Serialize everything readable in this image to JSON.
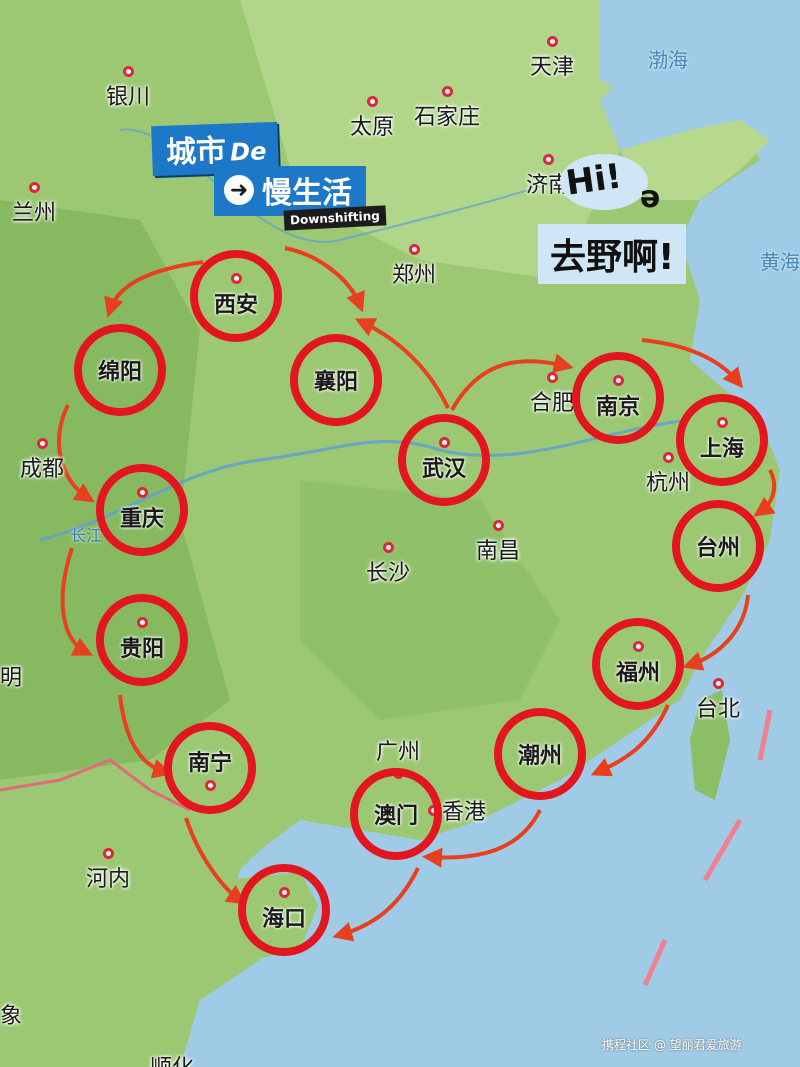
{
  "banner": {
    "line1": "城市",
    "line1_suffix": "De",
    "line2": "慢生活",
    "arrow": "➜",
    "tag": "Downshifting"
  },
  "callout": {
    "hi": "Hi!",
    "scribble": "ə",
    "go": "去野啊!"
  },
  "seas": {
    "bohai": "渤海",
    "huanghai": "黄海"
  },
  "river": "长江",
  "cities": {
    "yinchuan": "银川",
    "tianjin": "天津",
    "taiyuan": "太原",
    "shijiazhuang": "石家庄",
    "lanzhou": "兰州",
    "jinan": "济南",
    "zhengzhou": "郑州",
    "hefei": "合肥",
    "hangzhou": "杭州",
    "chengdu": "成都",
    "nanchang": "南昌",
    "changsha": "长沙",
    "taibei": "台北",
    "guangzhou": "广州",
    "xianggang": "香港",
    "hanoi": "河内",
    "ming": "明",
    "xiang": "象",
    "shunhua": "顺化"
  },
  "stops": {
    "xian": "西安",
    "mianyang": "绵阳",
    "xiangyang": "襄阳",
    "wuhan": "武汉",
    "nanjing": "南京",
    "shanghai": "上海",
    "chongqing": "重庆",
    "taizhou": "台州",
    "guiyang": "贵阳",
    "fuzhou": "福州",
    "nanning": "南宁",
    "chaozhou": "潮州",
    "aomen": "澳门",
    "haikou": "海口"
  },
  "credit": "携程社区 @ 望丽君爱旅游",
  "colors": {
    "route": "#e8401f",
    "ring": "#e3161f",
    "banner": "#1e78c8"
  }
}
